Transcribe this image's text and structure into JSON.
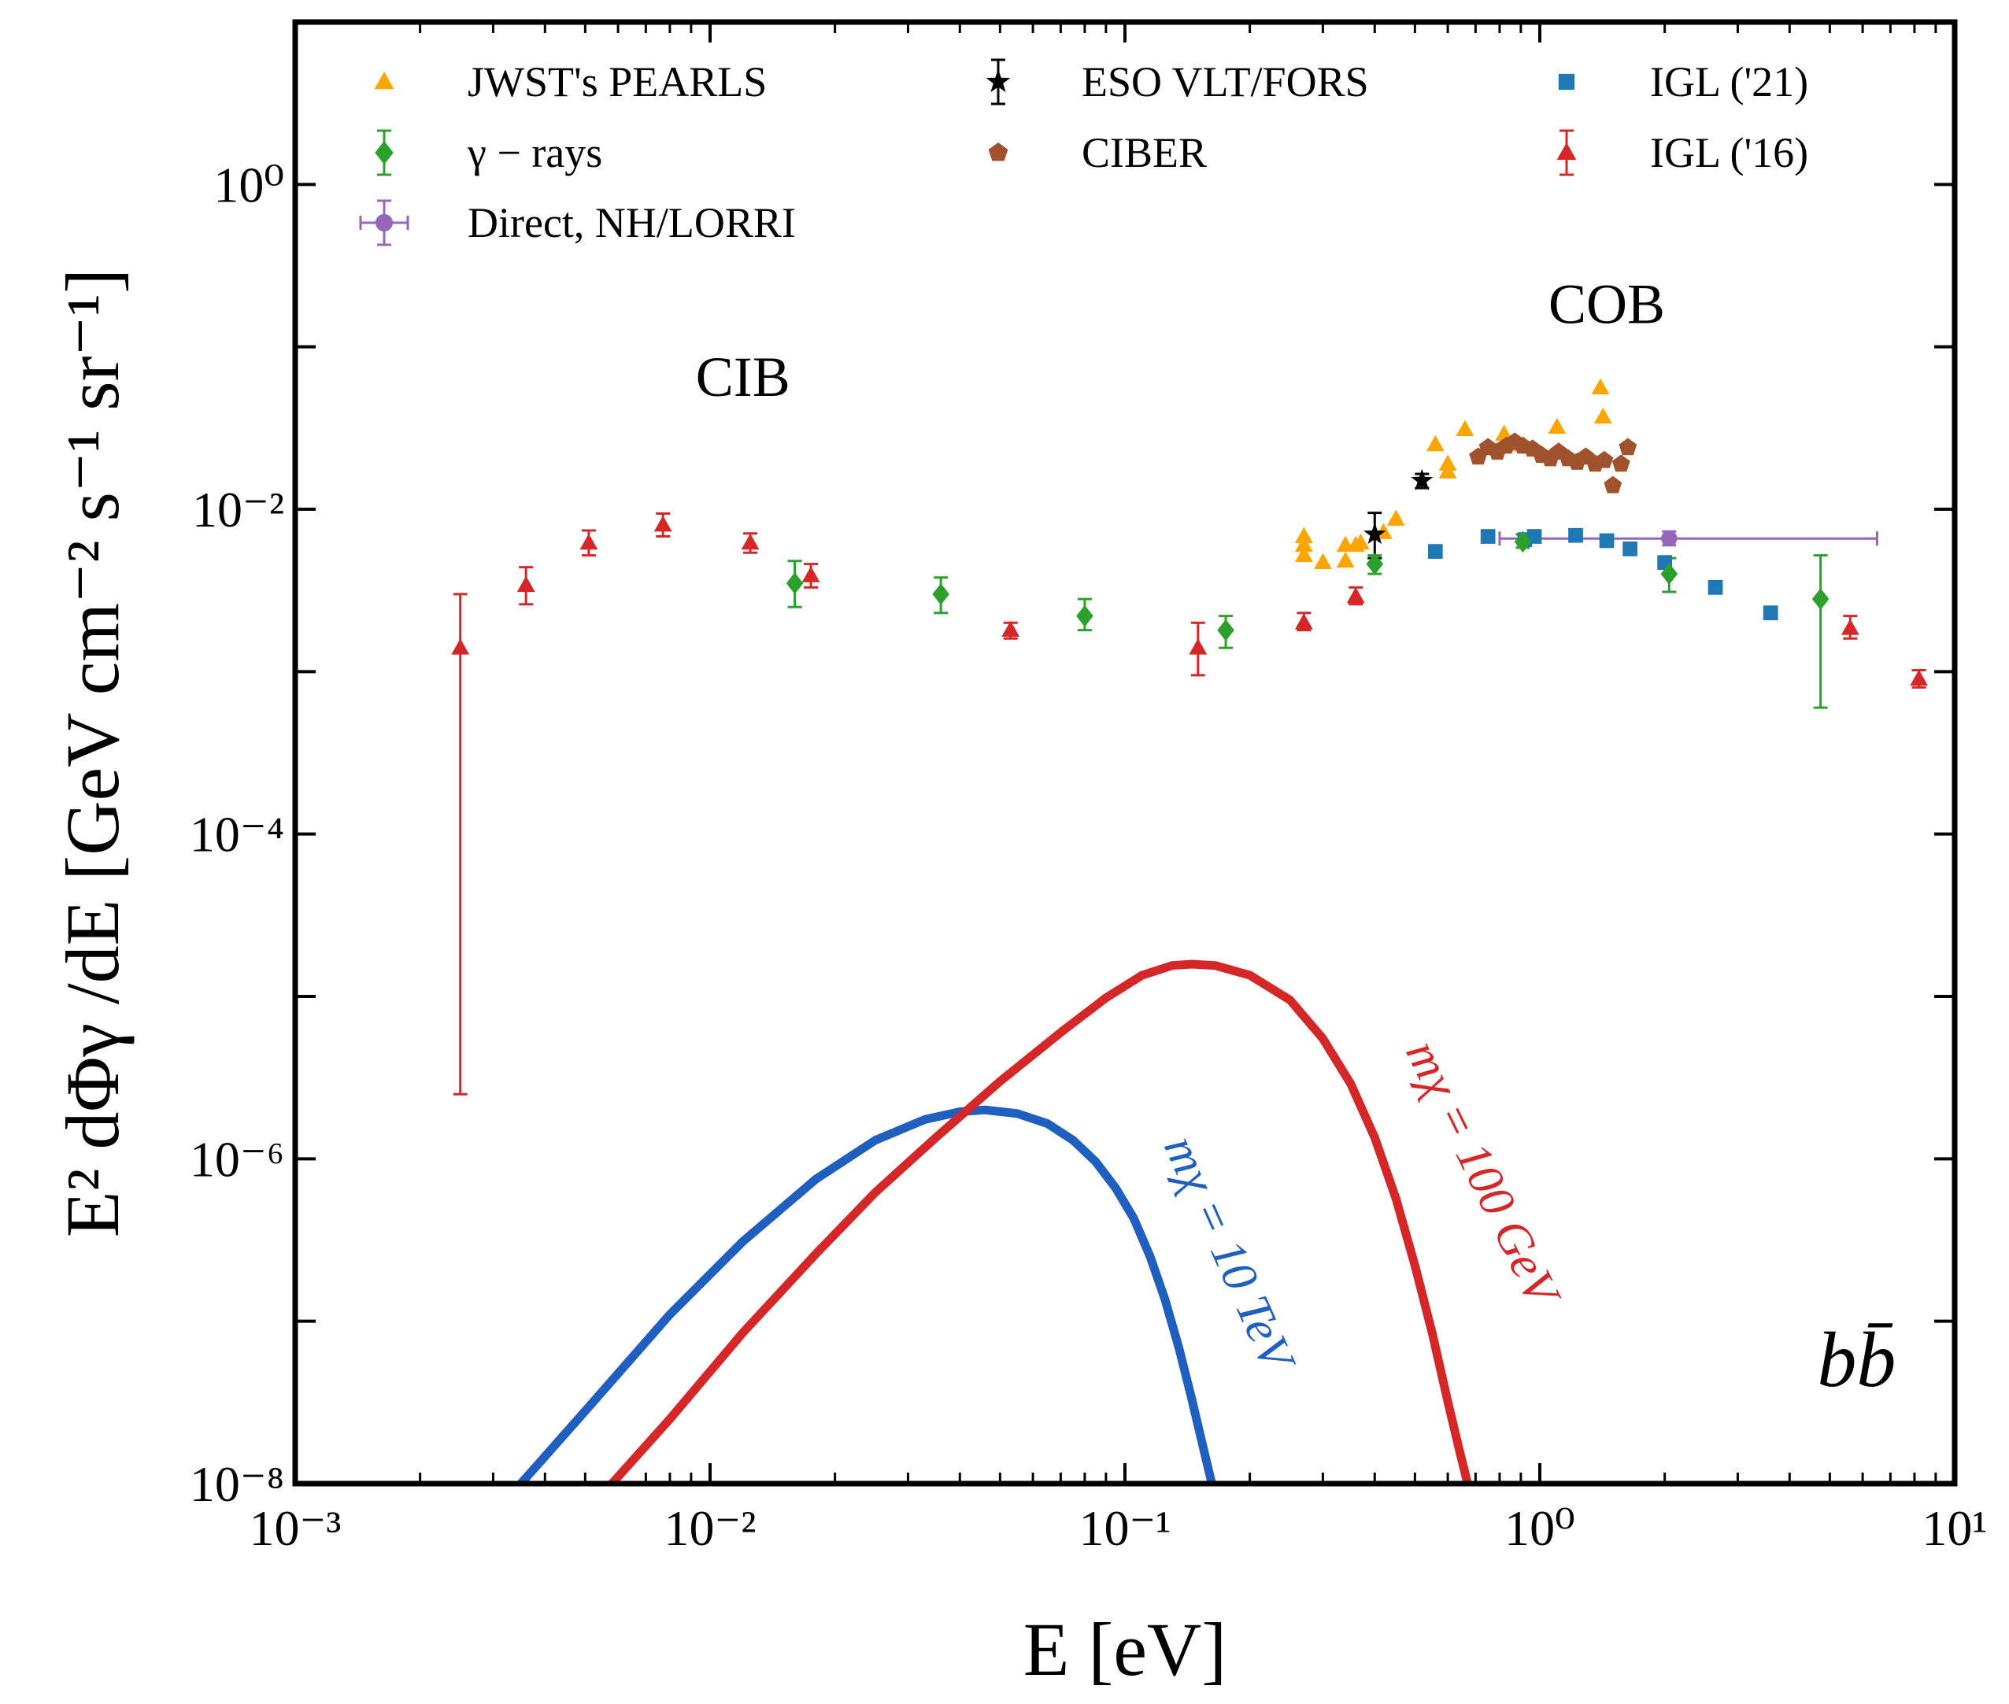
{
  "chart_data": {
    "type": "scatter",
    "title": "",
    "xlabel": "E [eV]",
    "ylabel": "E² dΦγ /dE [GeV cm⁻² s⁻¹ sr⁻¹]",
    "xscale": "log",
    "yscale": "log",
    "xlim": [
      0.001,
      10
    ],
    "ylim": [
      1e-08,
      10
    ],
    "grid": false,
    "legend_position": "top",
    "x_tick_labels": [
      "10⁻³",
      "10⁻²",
      "10⁻¹",
      "10⁰",
      "10¹"
    ],
    "y_tick_labels": [
      "10⁻⁸",
      "10⁻⁶",
      "10⁻⁴",
      "10⁻²",
      "10⁰"
    ],
    "annotations": [
      {
        "text": "CIB",
        "x": 0.012,
        "y": 0.05
      },
      {
        "text": "COB",
        "x": 1.45,
        "y": 0.14
      },
      {
        "text": "bb̄",
        "x": 5.8,
        "y": 4e-08
      }
    ],
    "series": [
      {
        "name": "JWST's PEARLS",
        "color": "#ffa500",
        "marker": "triangle",
        "points": [
          {
            "x": 0.27,
            "y": 0.0068
          },
          {
            "x": 0.27,
            "y": 0.006
          },
          {
            "x": 0.27,
            "y": 0.0052
          },
          {
            "x": 0.3,
            "y": 0.0047
          },
          {
            "x": 0.34,
            "y": 0.006
          },
          {
            "x": 0.34,
            "y": 0.0048
          },
          {
            "x": 0.36,
            "y": 0.006
          },
          {
            "x": 0.37,
            "y": 0.0062
          },
          {
            "x": 0.42,
            "y": 0.0072
          },
          {
            "x": 0.45,
            "y": 0.0087
          },
          {
            "x": 0.56,
            "y": 0.025
          },
          {
            "x": 0.6,
            "y": 0.019
          },
          {
            "x": 0.6,
            "y": 0.017
          },
          {
            "x": 0.66,
            "y": 0.031
          },
          {
            "x": 0.82,
            "y": 0.029
          },
          {
            "x": 0.85,
            "y": 0.025
          },
          {
            "x": 1.1,
            "y": 0.032
          },
          {
            "x": 1.4,
            "y": 0.056
          },
          {
            "x": 1.42,
            "y": 0.037
          }
        ]
      },
      {
        "name": "ESO VLT/FORS",
        "color": "#000000",
        "marker": "star",
        "points": [
          {
            "x": 0.4,
            "y": 0.007,
            "ylo": 0.005,
            "yhi": 0.0095
          },
          {
            "x": 0.52,
            "y": 0.015,
            "ylo": 0.0135,
            "yhi": 0.0165
          }
        ]
      },
      {
        "name": "IGL ('21)",
        "color": "#1f77b4",
        "marker": "square",
        "points": [
          {
            "x": 0.56,
            "y": 0.0055
          },
          {
            "x": 0.75,
            "y": 0.0068
          },
          {
            "x": 0.92,
            "y": 0.0065
          },
          {
            "x": 0.97,
            "y": 0.0068
          },
          {
            "x": 1.22,
            "y": 0.0069
          },
          {
            "x": 1.45,
            "y": 0.0064
          },
          {
            "x": 1.65,
            "y": 0.0057
          },
          {
            "x": 2.0,
            "y": 0.0047
          },
          {
            "x": 2.65,
            "y": 0.0033
          },
          {
            "x": 3.6,
            "y": 0.0023
          }
        ]
      },
      {
        "name": "γ − rays",
        "color": "#2ca02c",
        "marker": "diamond",
        "points": [
          {
            "x": 0.016,
            "y": 0.0035,
            "ylo": 0.0025,
            "yhi": 0.0048
          },
          {
            "x": 0.036,
            "y": 0.003,
            "ylo": 0.0023,
            "yhi": 0.0038
          },
          {
            "x": 0.08,
            "y": 0.0022,
            "ylo": 0.0018,
            "yhi": 0.0028
          },
          {
            "x": 0.175,
            "y": 0.0018,
            "ylo": 0.0014,
            "yhi": 0.0022
          },
          {
            "x": 0.4,
            "y": 0.0046,
            "ylo": 0.004,
            "yhi": 0.0052
          },
          {
            "x": 0.91,
            "y": 0.0063,
            "ylo": 0.0058,
            "yhi": 0.007
          },
          {
            "x": 2.05,
            "y": 0.004,
            "ylo": 0.0031,
            "yhi": 0.005
          },
          {
            "x": 4.75,
            "y": 0.0028,
            "ylo": 0.0006,
            "yhi": 0.0052
          }
        ]
      },
      {
        "name": "CIBER",
        "color": "#a0522d",
        "marker": "pentagon",
        "points": [
          {
            "x": 0.71,
            "y": 0.021
          },
          {
            "x": 0.75,
            "y": 0.024
          },
          {
            "x": 0.79,
            "y": 0.0225
          },
          {
            "x": 0.83,
            "y": 0.0245
          },
          {
            "x": 0.87,
            "y": 0.026
          },
          {
            "x": 0.91,
            "y": 0.0245
          },
          {
            "x": 0.96,
            "y": 0.0235
          },
          {
            "x": 1.01,
            "y": 0.0215
          },
          {
            "x": 1.06,
            "y": 0.0205
          },
          {
            "x": 1.11,
            "y": 0.0225
          },
          {
            "x": 1.17,
            "y": 0.0205
          },
          {
            "x": 1.23,
            "y": 0.0195
          },
          {
            "x": 1.29,
            "y": 0.021
          },
          {
            "x": 1.36,
            "y": 0.019
          },
          {
            "x": 1.43,
            "y": 0.02
          },
          {
            "x": 1.5,
            "y": 0.014
          },
          {
            "x": 1.57,
            "y": 0.019
          },
          {
            "x": 1.63,
            "y": 0.024
          }
        ]
      },
      {
        "name": "IGL ('16)",
        "color": "#d62728",
        "marker": "triangle",
        "points": [
          {
            "x": 0.0025,
            "y": 0.0014,
            "ylo": 2.5e-06,
            "yhi": 0.003
          },
          {
            "x": 0.0036,
            "y": 0.0034,
            "ylo": 0.0026,
            "yhi": 0.0044
          },
          {
            "x": 0.0051,
            "y": 0.0062,
            "ylo": 0.0052,
            "yhi": 0.0074
          },
          {
            "x": 0.0077,
            "y": 0.008,
            "ylo": 0.0068,
            "yhi": 0.0094
          },
          {
            "x": 0.0125,
            "y": 0.0062,
            "ylo": 0.0054,
            "yhi": 0.0071
          },
          {
            "x": 0.0175,
            "y": 0.0039,
            "ylo": 0.0033,
            "yhi": 0.0046
          },
          {
            "x": 0.053,
            "y": 0.0018,
            "ylo": 0.0016,
            "yhi": 0.002
          },
          {
            "x": 0.15,
            "y": 0.0014,
            "ylo": 0.00095,
            "yhi": 0.002
          },
          {
            "x": 0.27,
            "y": 0.002,
            "ylo": 0.0018,
            "yhi": 0.0023
          },
          {
            "x": 0.36,
            "y": 0.0029,
            "ylo": 0.0026,
            "yhi": 0.0033
          },
          {
            "x": 5.6,
            "y": 0.00185,
            "ylo": 0.0016,
            "yhi": 0.0022
          },
          {
            "x": 8.2,
            "y": 0.0009,
            "ylo": 0.0008,
            "yhi": 0.00102
          }
        ]
      },
      {
        "name": "Direct, NH/LORRI",
        "color": "#9467bd",
        "marker": "circle",
        "points": [
          {
            "x": 2.05,
            "y": 0.0066,
            "xlo": 0.8,
            "xhi": 6.5,
            "ylo": 0.006,
            "yhi": 0.0073
          }
        ]
      }
    ],
    "curves": [
      {
        "name": "mχ = 10 TeV",
        "color": "#1f5fbf",
        "points": [
          {
            "x": 0.0035,
            "y": 1e-08
          },
          {
            "x": 0.005,
            "y": 2.8e-08
          },
          {
            "x": 0.008,
            "y": 1.1e-07
          },
          {
            "x": 0.012,
            "y": 3.1e-07
          },
          {
            "x": 0.018,
            "y": 7.5e-07
          },
          {
            "x": 0.025,
            "y": 1.3e-06
          },
          {
            "x": 0.033,
            "y": 1.75e-06
          },
          {
            "x": 0.04,
            "y": 1.95e-06
          },
          {
            "x": 0.046,
            "y": 2e-06
          },
          {
            "x": 0.055,
            "y": 1.9e-06
          },
          {
            "x": 0.065,
            "y": 1.65e-06
          },
          {
            "x": 0.075,
            "y": 1.3e-06
          },
          {
            "x": 0.085,
            "y": 9.6e-07
          },
          {
            "x": 0.095,
            "y": 6.6e-07
          },
          {
            "x": 0.105,
            "y": 4.3e-07
          },
          {
            "x": 0.115,
            "y": 2.5e-07
          },
          {
            "x": 0.125,
            "y": 1.35e-07
          },
          {
            "x": 0.135,
            "y": 6.8e-08
          },
          {
            "x": 0.145,
            "y": 3.3e-08
          },
          {
            "x": 0.155,
            "y": 1.6e-08
          },
          {
            "x": 0.162,
            "y": 1e-08
          }
        ]
      },
      {
        "name": "mχ = 100 GeV",
        "color": "#d62728",
        "points": [
          {
            "x": 0.0058,
            "y": 1e-08
          },
          {
            "x": 0.008,
            "y": 2.5e-08
          },
          {
            "x": 0.012,
            "y": 8.5e-08
          },
          {
            "x": 0.018,
            "y": 2.6e-07
          },
          {
            "x": 0.025,
            "y": 6.2e-07
          },
          {
            "x": 0.035,
            "y": 1.35e-06
          },
          {
            "x": 0.05,
            "y": 3e-06
          },
          {
            "x": 0.07,
            "y": 6e-06
          },
          {
            "x": 0.09,
            "y": 9.8e-06
          },
          {
            "x": 0.11,
            "y": 1.35e-05
          },
          {
            "x": 0.13,
            "y": 1.55e-05
          },
          {
            "x": 0.145,
            "y": 1.58e-05
          },
          {
            "x": 0.165,
            "y": 1.55e-05
          },
          {
            "x": 0.2,
            "y": 1.35e-05
          },
          {
            "x": 0.25,
            "y": 9.5e-06
          },
          {
            "x": 0.3,
            "y": 5.5e-06
          },
          {
            "x": 0.35,
            "y": 2.9e-06
          },
          {
            "x": 0.4,
            "y": 1.35e-06
          },
          {
            "x": 0.45,
            "y": 5.7e-07
          },
          {
            "x": 0.5,
            "y": 2.2e-07
          },
          {
            "x": 0.55,
            "y": 8.5e-08
          },
          {
            "x": 0.6,
            "y": 3.2e-08
          },
          {
            "x": 0.64,
            "y": 1.6e-08
          },
          {
            "x": 0.67,
            "y": 1e-08
          }
        ]
      }
    ],
    "curve_labels": [
      {
        "text": "mχ = 10 TeV",
        "color": "#1f5fbf"
      },
      {
        "text": "mχ = 100 GeV",
        "color": "#d62728"
      }
    ]
  }
}
